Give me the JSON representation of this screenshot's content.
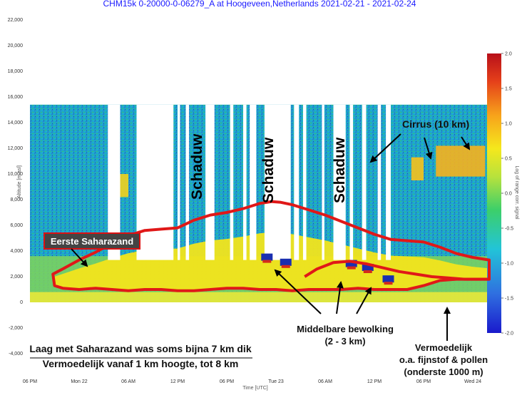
{
  "chart_data": {
    "type": "heatmap",
    "title": "CHM15k 0-20000-0-06279_A at Hoogeveen,Netherlands 2021-02-21 - 2021-02-24",
    "xlabel": "Time [UTC]",
    "ylabel": "Altitude [m asl]",
    "colorbar_label": "Log of range corr. signal",
    "ylim": [
      -5000,
      22000
    ],
    "y_ticks": [
      {
        "value": 22000,
        "label": "22,000"
      },
      {
        "value": 20000,
        "label": "20,000"
      },
      {
        "value": 18000,
        "label": "18,000"
      },
      {
        "value": 16000,
        "label": "16,000"
      },
      {
        "value": 14000,
        "label": "14,000"
      },
      {
        "value": 12000,
        "label": "12,000"
      },
      {
        "value": 10000,
        "label": "10,000"
      },
      {
        "value": 8000,
        "label": "8,000"
      },
      {
        "value": 6000,
        "label": "6,000"
      },
      {
        "value": 4000,
        "label": "4,000"
      },
      {
        "value": 2000,
        "label": "2,000"
      },
      {
        "value": 0,
        "label": "0"
      },
      {
        "value": -2000,
        "label": "-2,000"
      },
      {
        "value": -4000,
        "label": "-4,000"
      }
    ],
    "x_ticks": [
      {
        "hour": 18,
        "label": "06 PM"
      },
      {
        "hour": 24,
        "label": "Mon 22"
      },
      {
        "hour": 30,
        "label": "06 AM"
      },
      {
        "hour": 36,
        "label": "12 PM"
      },
      {
        "hour": 42,
        "label": "06 PM"
      },
      {
        "hour": 48,
        "label": "Tue 23"
      },
      {
        "hour": 54,
        "label": "06 AM"
      },
      {
        "hour": 60,
        "label": "12 PM"
      },
      {
        "hour": 66,
        "label": "06 PM"
      },
      {
        "hour": 72,
        "label": "Wed 24"
      }
    ],
    "colorbar_ticks": [
      2.0,
      1.5,
      1.0,
      0.5,
      0.0,
      -0.5,
      -1.0,
      -1.5,
      -2.0
    ],
    "colorbar_range": [
      -2.0,
      2.0
    ],
    "colorbar_colors": [
      "#1a1acc",
      "#2f6fe0",
      "#22c4d8",
      "#3ccf6a",
      "#b8e23c",
      "#f5e81c",
      "#f7a21b",
      "#e5401a",
      "#b8101a"
    ],
    "data_range_hours": [
      18,
      74
    ],
    "data_max_altitude_m": 15400,
    "saharan_dust_layer": {
      "upper_edge": [
        [
          20.8,
          2200
        ],
        [
          22,
          2600
        ],
        [
          24,
          3300
        ],
        [
          26,
          3900
        ],
        [
          28,
          4600
        ],
        [
          30,
          5200
        ],
        [
          32,
          5600
        ],
        [
          34,
          5700
        ],
        [
          36,
          5800
        ],
        [
          38,
          6400
        ],
        [
          40,
          6800
        ],
        [
          42,
          7000
        ],
        [
          44,
          7300
        ],
        [
          46,
          7700
        ],
        [
          47.5,
          7850
        ],
        [
          48.5,
          7800
        ],
        [
          50,
          7600
        ],
        [
          52,
          7200
        ],
        [
          54,
          6800
        ],
        [
          56,
          6300
        ],
        [
          58,
          5800
        ],
        [
          60,
          5300
        ],
        [
          62,
          4900
        ],
        [
          64,
          4800
        ],
        [
          66,
          4700
        ],
        [
          68,
          4300
        ],
        [
          70,
          3800
        ],
        [
          72,
          3500
        ],
        [
          74,
          3300
        ]
      ],
      "lower_edge": [
        [
          21,
          1300
        ],
        [
          22,
          1100
        ],
        [
          24,
          1000
        ],
        [
          26,
          1100
        ],
        [
          28,
          1000
        ],
        [
          30,
          900
        ],
        [
          32,
          1000
        ],
        [
          34,
          1000
        ],
        [
          36,
          900
        ],
        [
          38,
          900
        ],
        [
          40,
          1000
        ],
        [
          42,
          1100
        ],
        [
          44,
          1100
        ],
        [
          46,
          1000
        ],
        [
          48,
          1000
        ],
        [
          50,
          900
        ],
        [
          52,
          1000
        ],
        [
          54,
          1000
        ],
        [
          56,
          1000
        ],
        [
          58,
          1100
        ],
        [
          60,
          1000
        ],
        [
          62,
          1000
        ],
        [
          64,
          1000
        ],
        [
          66,
          1300
        ],
        [
          68,
          1700
        ],
        [
          70,
          1800
        ],
        [
          72,
          1800
        ],
        [
          74,
          1800
        ]
      ],
      "inner_upper": [
        [
          51.5,
          2000
        ],
        [
          53,
          2600
        ],
        [
          55,
          3100
        ],
        [
          57,
          3200
        ],
        [
          59,
          3000
        ],
        [
          61,
          2700
        ],
        [
          63,
          2400
        ],
        [
          65,
          2200
        ],
        [
          67,
          2000
        ],
        [
          69,
          1900
        ],
        [
          71,
          1800
        ],
        [
          74,
          1800
        ]
      ]
    },
    "annotations": {
      "first_sahara": "Eerste Saharazand",
      "shadow": "Schaduw",
      "cirrus": "Cirrus (10 km)",
      "mid_cloud_1": "Middelbare bewolking",
      "mid_cloud_2": "(2 - 3 km)",
      "dust_1": "Laag met Saharazand was soms bijna 7 km dik",
      "dust_2": "Vermoedelijk vanaf 1 km hoogte, tot 8 km",
      "fine_1": "Vermoedelijk",
      "fine_2": "o.a. fijnstof & pollen",
      "fine_3": "(onderste 1000 m)"
    },
    "legend_position": "right",
    "grid": false
  }
}
